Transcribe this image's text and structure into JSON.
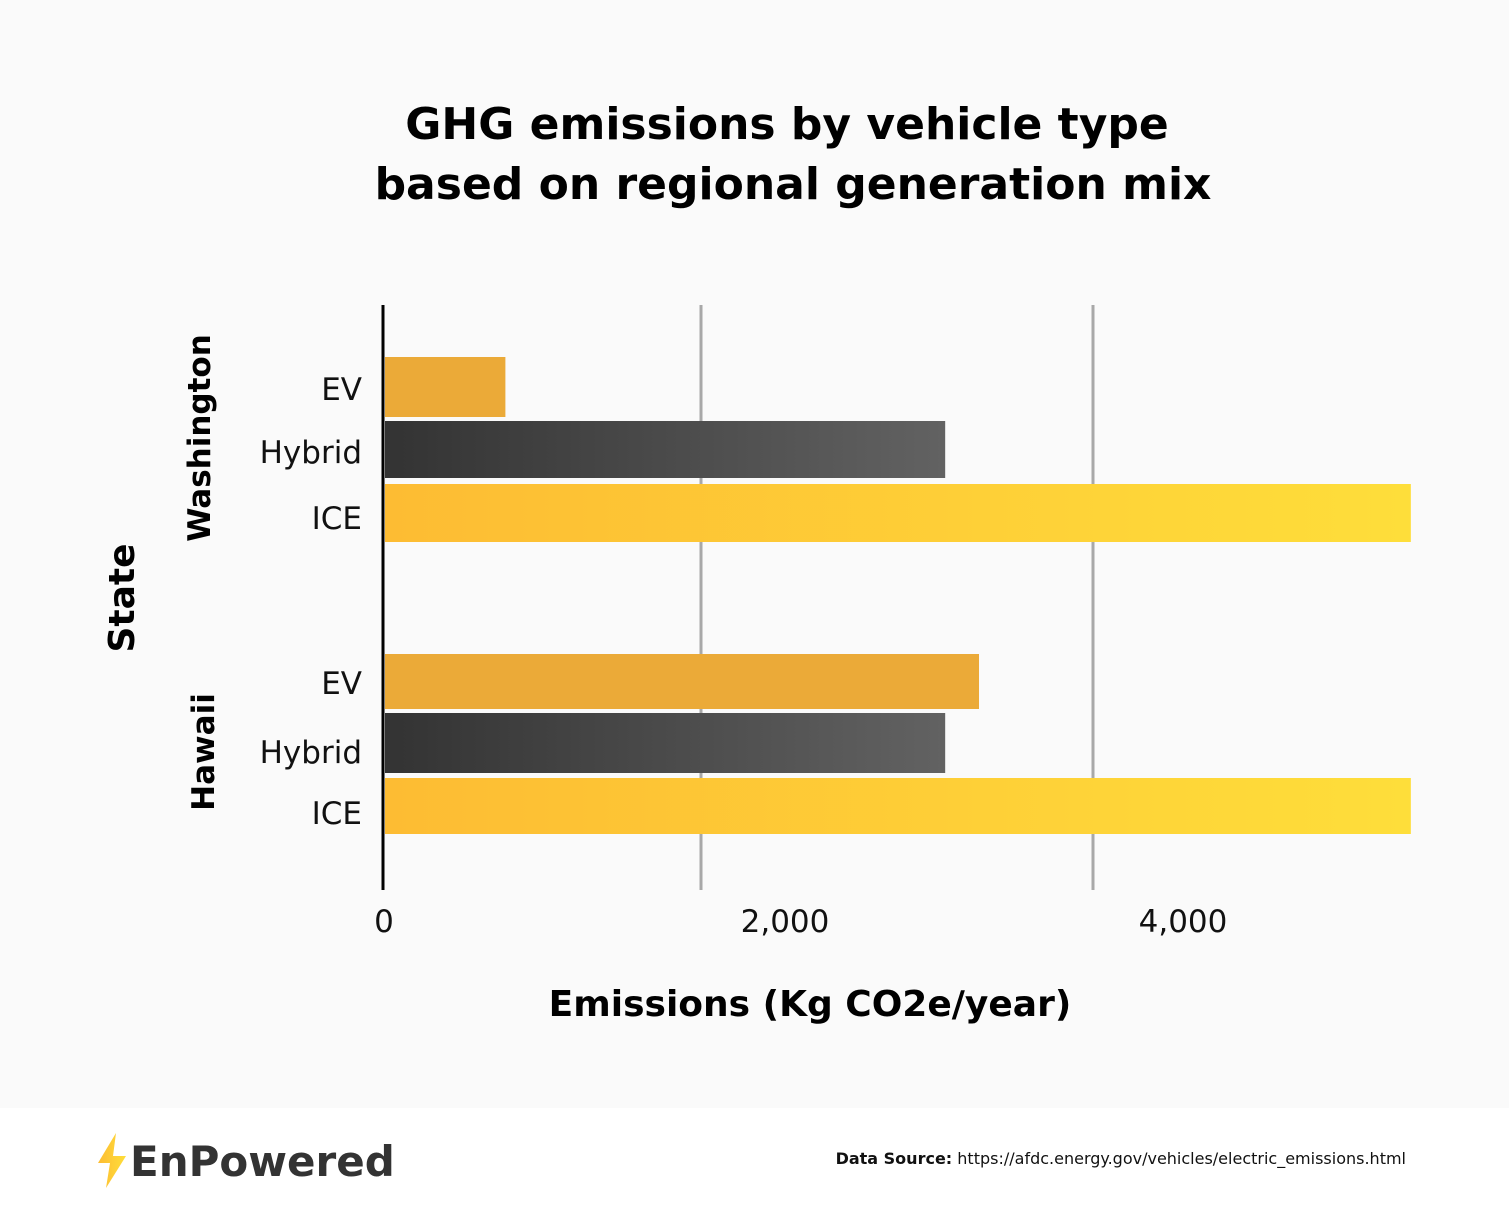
{
  "chart_data": {
    "type": "bar",
    "orientation": "horizontal",
    "title": "GHG emissions by vehicle type based on regional generation mix",
    "title_lines": [
      "GHG emissions by vehicle type",
      "based on regional generation mix"
    ],
    "xlabel": "Emissions (Kg CO2e/year)",
    "ylabel": "State",
    "xlim": [
      0,
      5160
    ],
    "xticks": [
      {
        "value": 0,
        "label": "0"
      },
      {
        "value": 2000,
        "label": "2,000"
      },
      {
        "value": 4000,
        "label": "4,000"
      }
    ],
    "grid": true,
    "groups": [
      {
        "name": "Washington",
        "categories": [
          "EV",
          "Hybrid",
          "ICE"
        ],
        "values": [
          610,
          2820,
          5160
        ]
      },
      {
        "name": "Hawaii",
        "categories": [
          "EV",
          "Hybrid",
          "ICE"
        ],
        "values": [
          2990,
          2820,
          5160
        ]
      }
    ],
    "colors": {
      "EV": "#EBAA38",
      "Hybrid": [
        "#333333",
        "#626262"
      ],
      "ICE": [
        "#FDBC33",
        "#FEDE3A"
      ]
    }
  },
  "footer": {
    "logo": "EnPowered",
    "source_label": "Data Source:",
    "source_url": "https://afdc.energy.gov/vehicles/electric_emissions.html"
  }
}
